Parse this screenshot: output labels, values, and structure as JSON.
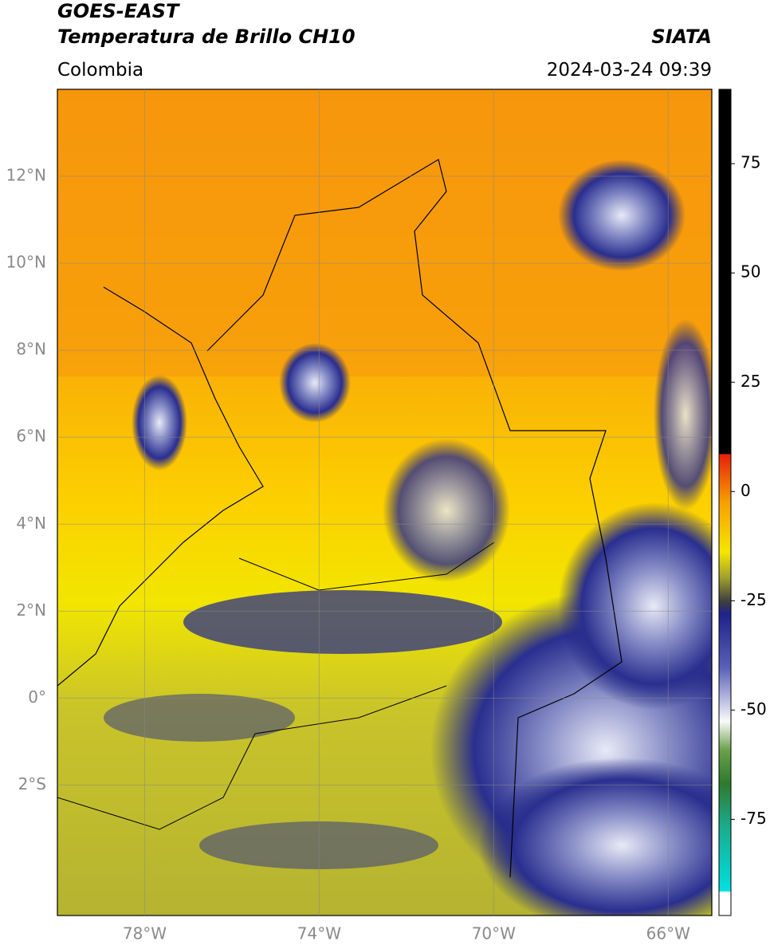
{
  "header": {
    "title": "GOES-EAST",
    "subtitle": "Temperatura de Brillo CH10",
    "region": "Colombia",
    "source": "SIATA",
    "timestamp": "2024-03-24 09:39"
  },
  "map": {
    "xlim": [
      -80,
      -65
    ],
    "ylim": [
      -5,
      14
    ],
    "xticks": [
      {
        "value": -78,
        "label": "78°W"
      },
      {
        "value": -74,
        "label": "74°W"
      },
      {
        "value": -70,
        "label": "70°W"
      },
      {
        "value": -66,
        "label": "66°W"
      }
    ],
    "yticks": [
      {
        "value": 12,
        "label": "12°N"
      },
      {
        "value": 10,
        "label": "10°N"
      },
      {
        "value": 8,
        "label": "8°N"
      },
      {
        "value": 6,
        "label": "6°N"
      },
      {
        "value": 4,
        "label": "4°N"
      },
      {
        "value": 2,
        "label": "2°N"
      },
      {
        "value": 0,
        "label": "0°"
      },
      {
        "value": -2,
        "label": "2°S"
      }
    ]
  },
  "colorbar": {
    "lim": [
      -97,
      92
    ],
    "ticks": [
      75,
      50,
      25,
      0,
      -25,
      -50,
      -75
    ]
  }
}
